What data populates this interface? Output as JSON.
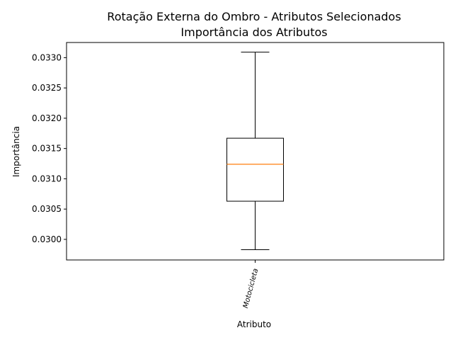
{
  "chart_data": {
    "type": "box",
    "title": "Rotação Externa do Ombro - Atributos Selecionados",
    "subtitle": "Importância dos Atributos",
    "xlabel": "Atributo",
    "ylabel": "Importância",
    "ylim": [
      0.02966,
      0.03325
    ],
    "y_ticks": [
      0.03,
      0.0305,
      0.031,
      0.0315,
      0.032,
      0.0325,
      0.033
    ],
    "y_tick_labels": [
      "0.0300",
      "0.0305",
      "0.0310",
      "0.0315",
      "0.0320",
      "0.0325",
      "0.0330"
    ],
    "categories": [
      "Motocicleta"
    ],
    "boxes": [
      {
        "category": "Motocicleta",
        "whisker_low": 0.02983,
        "q1": 0.03063,
        "median": 0.03124,
        "q3": 0.03167,
        "whisker_high": 0.03309
      }
    ],
    "colors": {
      "box": "#000000",
      "median": "#ff7f0e",
      "axes": "#000000",
      "background": "#ffffff"
    },
    "grid": false,
    "x_tick_label_rotation": "75 degrees"
  }
}
